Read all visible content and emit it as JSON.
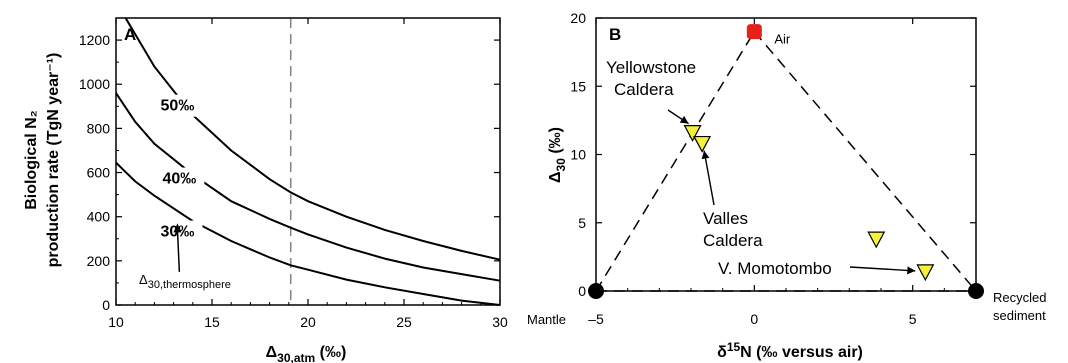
{
  "chart_data": [
    {
      "panel": "A",
      "type": "line",
      "xlabel": "Δ30,atm (‰)",
      "ylabel_line1": "Biological N₂",
      "ylabel_line2": "production rate (TgN year⁻¹)",
      "xlim": [
        10,
        30
      ],
      "ylim": [
        0,
        1300
      ],
      "x_ticks": [
        10,
        15,
        20,
        25,
        30
      ],
      "y_ticks": [
        0,
        200,
        400,
        600,
        800,
        1000,
        1200
      ],
      "reference_line": {
        "x": 19.1,
        "style": "dashed",
        "color": "#888888"
      },
      "series": [
        {
          "name": "50‰",
          "x": [
            10.5,
            12,
            14,
            16,
            18,
            19.1,
            20,
            22,
            24,
            26,
            28,
            30
          ],
          "values": [
            1300,
            1080,
            860,
            700,
            570,
            510,
            470,
            400,
            340,
            290,
            245,
            205
          ]
        },
        {
          "name": "40‰",
          "x": [
            10,
            11,
            12,
            14,
            16,
            18,
            19.1,
            20,
            22,
            24,
            26,
            28,
            30
          ],
          "values": [
            960,
            830,
            730,
            590,
            470,
            390,
            350,
            320,
            260,
            210,
            170,
            140,
            110
          ]
        },
        {
          "name": "30‰",
          "x": [
            10,
            11,
            12,
            14,
            16,
            18,
            19.1,
            20,
            22,
            24,
            26,
            28,
            30
          ],
          "values": [
            645,
            560,
            495,
            380,
            290,
            215,
            180,
            160,
            115,
            80,
            50,
            20,
            0
          ]
        }
      ],
      "annotation": {
        "text": "Δ30,thermosphere",
        "arrow_to": [
          13.2,
          370
        ]
      }
    },
    {
      "panel": "B",
      "type": "scatter",
      "xlabel": "δ15N (‰ versus air)",
      "ylabel": "Δ30 (‰)",
      "xlim": [
        -5,
        7
      ],
      "ylim": [
        0,
        20
      ],
      "x_ticks": [
        -5,
        0,
        5
      ],
      "y_ticks": [
        0,
        5,
        10,
        15,
        20
      ],
      "endmembers": [
        {
          "label": "Air",
          "x": 0,
          "y": 19,
          "marker": "square",
          "color": "#e8201a"
        },
        {
          "label": "Mantle",
          "x": -5,
          "y": 0,
          "marker": "circle",
          "color": "#000000"
        },
        {
          "label": "Recycled sediment",
          "label_line1": "Recycled",
          "label_line2": "sediment",
          "x": 7,
          "y": 0,
          "marker": "circle",
          "color": "#000000"
        }
      ],
      "samples": [
        {
          "label": "Yellowstone Caldera",
          "label_line1": "Yellowstone",
          "label_line2": "Caldera",
          "x": -1.95,
          "y": 11.6,
          "marker": "triangle-down",
          "color": "#f5f03c"
        },
        {
          "label": "Valles Caldera",
          "label_line1": "Valles",
          "label_line2": "Caldera",
          "x": -1.65,
          "y": 10.8,
          "marker": "triangle-down",
          "color": "#f5f03c"
        },
        {
          "label": "V. Momotombo",
          "x": 3.85,
          "y": 3.8,
          "marker": "triangle-down",
          "color": "#f5f03c"
        },
        {
          "label": "V. Momotombo",
          "x": 5.4,
          "y": 1.4,
          "marker": "triangle-down",
          "color": "#f5f03c"
        }
      ],
      "mixing_lines": "dashed"
    }
  ]
}
